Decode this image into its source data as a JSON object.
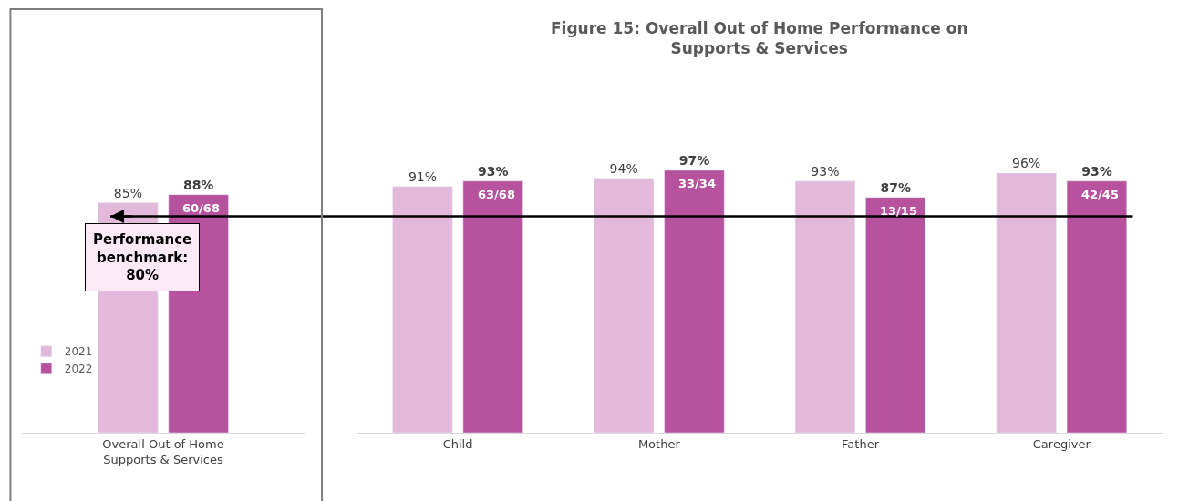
{
  "chart_data": {
    "type": "bar",
    "title": "Figure 15: Overall Out of Home Performance on\nSupports & Services",
    "categories": [
      "Overall Out of Home\nSupports & Services",
      "Child",
      "Mother",
      "Father",
      "Caregiver"
    ],
    "series": [
      {
        "name": "2021",
        "color": "#e2b9da",
        "values": [
          85,
          91,
          94,
          93,
          96
        ],
        "value_labels": [
          "85%",
          "91%",
          "94%",
          "93%",
          "96%"
        ]
      },
      {
        "name": "2022",
        "color": "#b6529e",
        "values": [
          88,
          93,
          97,
          87,
          93
        ],
        "value_labels": [
          "88%",
          "93%",
          "97%",
          "87%",
          "93%"
        ]
      }
    ],
    "legend": "bottom left",
    "annotations": [
      "60/68",
      "63/68",
      "33/34",
      "13/15",
      "42/45"
    ],
    "ref_lines": [
      {
        "axis": "y",
        "value": 80,
        "label": "Performance\nbenchmark:\n80%",
        "color": "#000000"
      }
    ]
  }
}
